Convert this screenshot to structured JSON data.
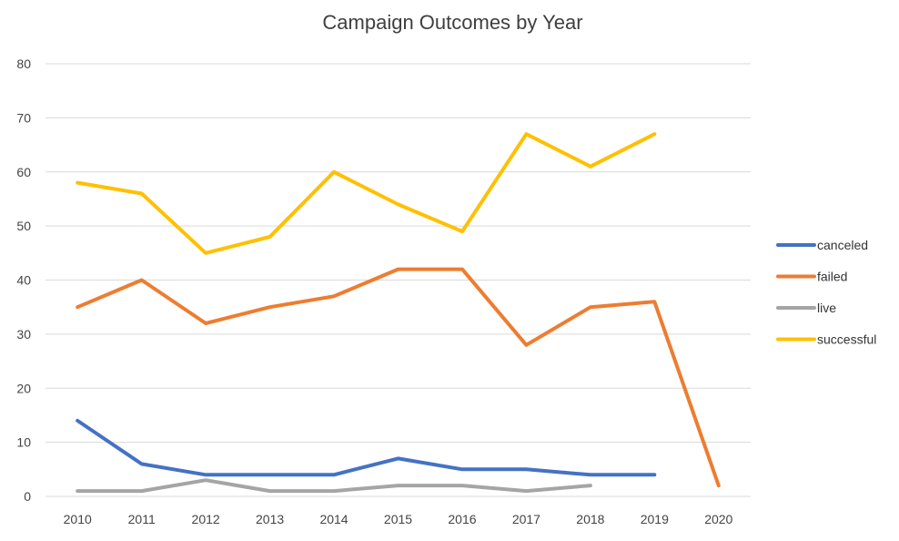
{
  "chart_data": {
    "type": "line",
    "title": "Campaign Outcomes by Year",
    "xlabel": "",
    "ylabel": "",
    "categories": [
      "2010",
      "2011",
      "2012",
      "2013",
      "2014",
      "2015",
      "2016",
      "2017",
      "2018",
      "2019",
      "2020"
    ],
    "ylim": [
      0,
      80
    ],
    "yticks": [
      0,
      10,
      20,
      30,
      40,
      50,
      60,
      70,
      80
    ],
    "grid": true,
    "legend_position": "right",
    "series": [
      {
        "name": "canceled",
        "color": "#4472c4",
        "values": [
          14,
          6,
          4,
          4,
          4,
          7,
          5,
          5,
          4,
          4,
          null
        ]
      },
      {
        "name": "failed",
        "color": "#ed7d31",
        "values": [
          35,
          40,
          32,
          35,
          37,
          42,
          42,
          28,
          35,
          36,
          2
        ]
      },
      {
        "name": "live",
        "color": "#a5a5a5",
        "values": [
          1,
          1,
          3,
          1,
          1,
          2,
          2,
          1,
          2,
          null,
          null
        ]
      },
      {
        "name": "successful",
        "color": "#ffc000",
        "values": [
          58,
          56,
          45,
          48,
          60,
          54,
          49,
          67,
          61,
          67,
          null
        ]
      }
    ]
  }
}
